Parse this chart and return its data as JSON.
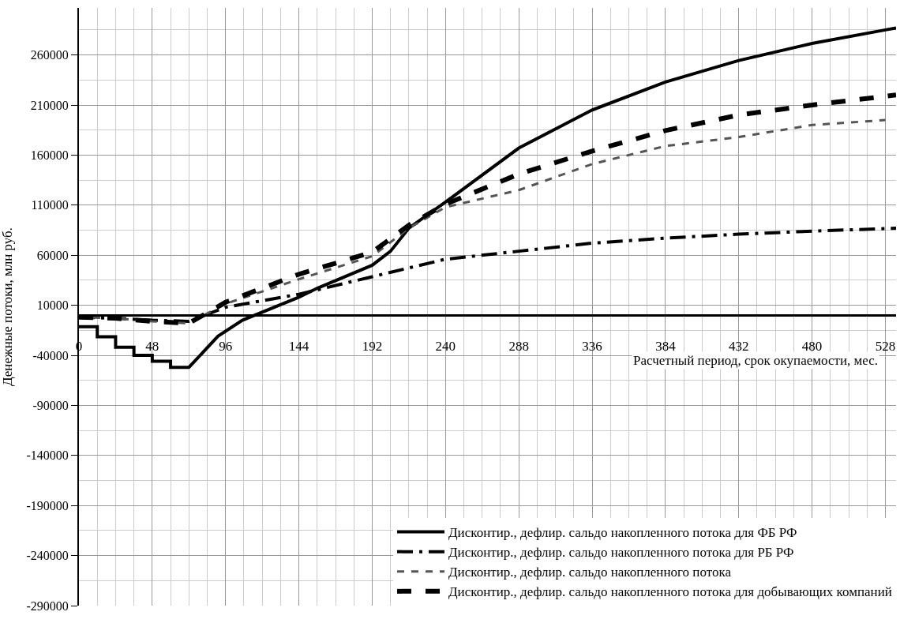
{
  "chart_data": {
    "type": "line",
    "xlabel": "Расчетный период, срок окупаемости, мес.",
    "ylabel": "Денежные потоки, млн руб.",
    "xlim": [
      0,
      535
    ],
    "xticks": [
      0,
      48,
      96,
      144,
      192,
      240,
      288,
      336,
      384,
      432,
      480,
      528
    ],
    "ylim": [
      -290000,
      307000
    ],
    "yticks": [
      -290000,
      -240000,
      -190000,
      -140000,
      -90000,
      -40000,
      10000,
      60000,
      110000,
      160000,
      210000,
      260000
    ],
    "grid": true,
    "legend": "bottom right",
    "series": [
      {
        "name": "Дисконтир., дефлир. сальдо накопленного потока для ФБ РФ",
        "color": "#000000",
        "line_style": "solid",
        "x": [
          0,
          12,
          12,
          24,
          24,
          36,
          36,
          48,
          48,
          60,
          60,
          72,
          91,
          107,
          144,
          156,
          192,
          204,
          216,
          240,
          288,
          336,
          384,
          432,
          480,
          528,
          535
        ],
        "values": [
          -11500,
          -11500,
          -21500,
          -21500,
          -32000,
          -32000,
          -40000,
          -40000,
          -46000,
          -46000,
          -52000,
          -52000,
          -21000,
          -5000,
          18000,
          27000,
          50000,
          64000,
          87000,
          113000,
          167000,
          205000,
          233000,
          254500,
          271500,
          285000,
          287000
        ]
      },
      {
        "name": "Дисконтир., дефлир. сальдо накопленного потока для РБ РФ",
        "color": "#000000",
        "line_style": "dashdot",
        "x": [
          0,
          24,
          48,
          72,
          96,
          144,
          192,
          240,
          288,
          336,
          384,
          432,
          480,
          535
        ],
        "values": [
          -2000,
          -3000,
          -5000,
          -6000,
          8000,
          21000,
          38500,
          56000,
          64000,
          72000,
          77000,
          81000,
          84000,
          87000
        ]
      },
      {
        "name": "Дисконтир., дефлир. сальдо накопленного потока",
        "color": "#555555",
        "line_style": "dashed",
        "x": [
          0,
          24,
          48,
          72,
          96,
          144,
          192,
          216,
          240,
          288,
          336,
          384,
          432,
          480,
          528
        ],
        "values": [
          -2000,
          -3000,
          -6000,
          -8000,
          11500,
          36000,
          59000,
          87000,
          108000,
          125000,
          151000,
          169000,
          178000,
          190000,
          195000
        ]
      },
      {
        "name": "Дисконтир., дефлир. сальдо накопленного потока для добывающих компаний",
        "color": "#000000",
        "line_style": "dashed",
        "x": [
          0,
          24,
          48,
          72,
          96,
          144,
          192,
          216,
          240,
          288,
          336,
          384,
          432,
          480,
          535
        ],
        "values": [
          -2000,
          -3000,
          -6000,
          -8000,
          13000,
          41000,
          63000,
          90000,
          111000,
          141000,
          164000,
          184500,
          200000,
          210000,
          220000
        ]
      }
    ]
  }
}
